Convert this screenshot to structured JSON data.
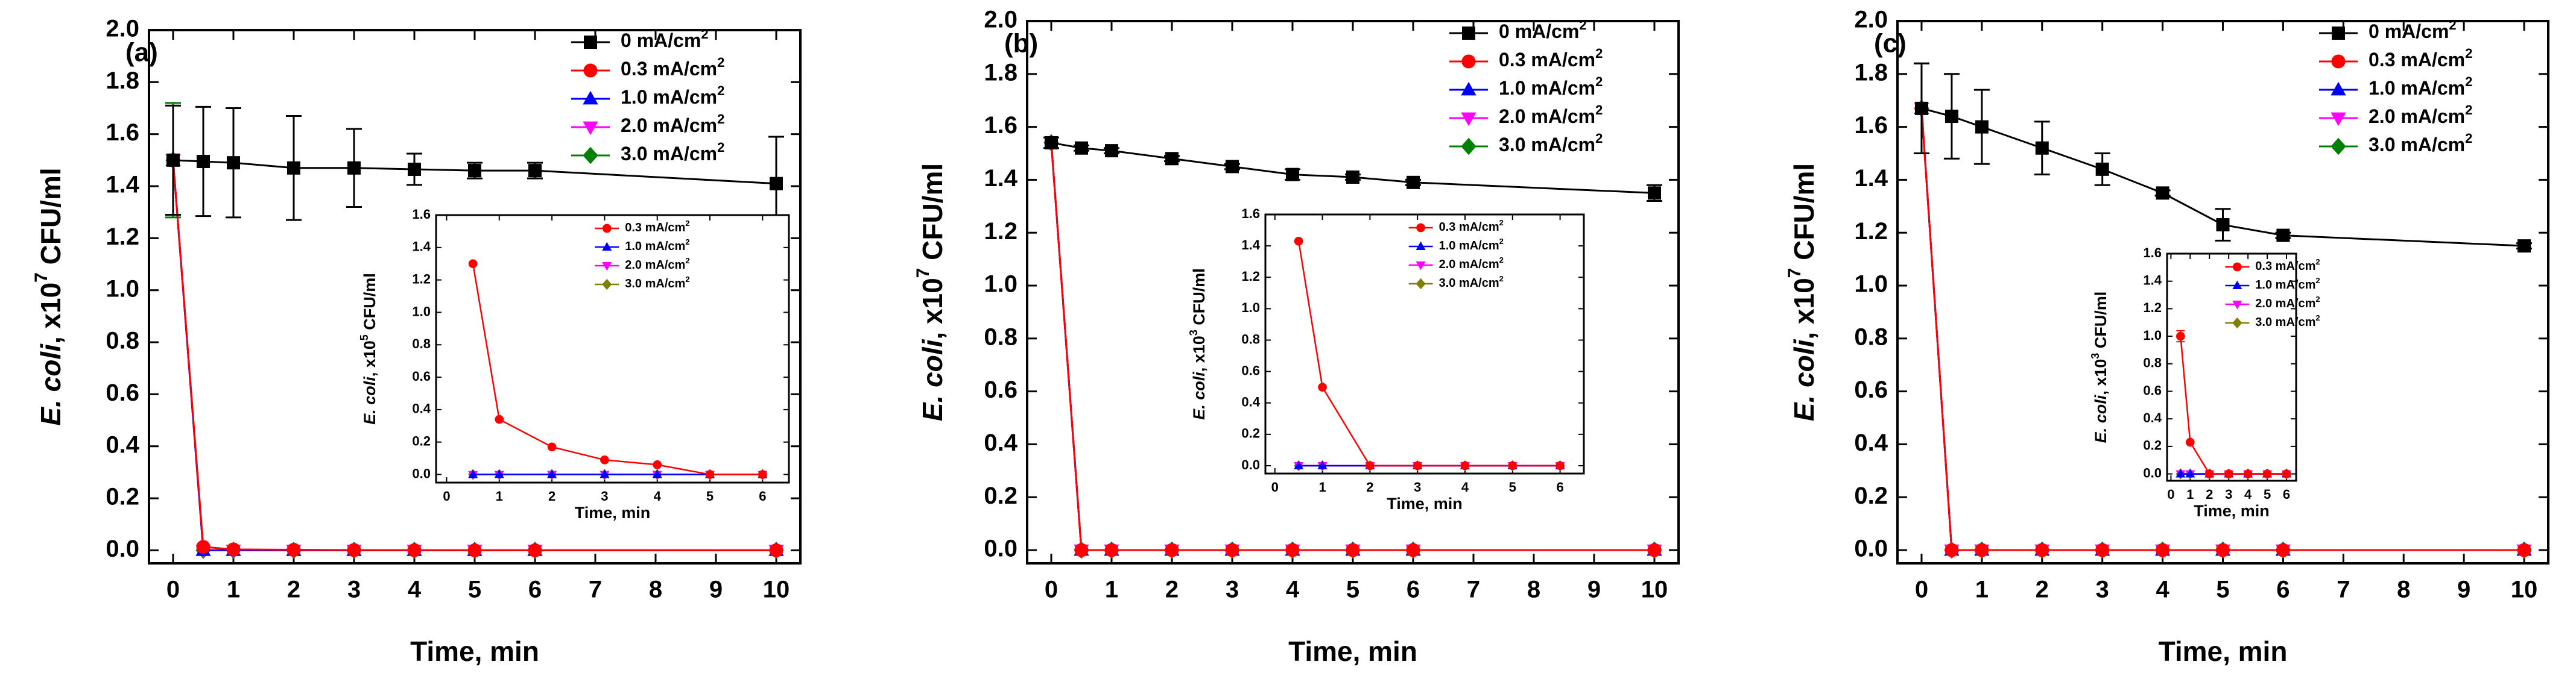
{
  "colors": {
    "s0": "#000000",
    "s03": "#ff0000",
    "s10": "#0000ff",
    "s20": "#ff00ff",
    "s30": "#008000",
    "s30_inset": "#808000",
    "axis": "#000000"
  },
  "markers": {
    "s0": "square",
    "s03": "circle",
    "s10": "triangle-up",
    "s20": "triangle-down",
    "s30": "diamond"
  },
  "chart_data": [
    {
      "type": "line",
      "panel_label": "(a)",
      "xlabel": "Time, min",
      "ylabel_italic": "E. coli",
      "ylabel_rest": ", x10",
      "ylabel_exp": "7",
      "ylabel_unit": " CFU/ml",
      "xlim": [
        -0.4,
        10.4
      ],
      "ylim": [
        -0.05,
        2.0
      ],
      "xticks": [
        0,
        1,
        2,
        3,
        4,
        5,
        6,
        7,
        8,
        9,
        10
      ],
      "xtick_labels": [
        "0",
        "1",
        "2",
        "3",
        "4",
        "5",
        "6",
        "7",
        "8",
        "9",
        "10"
      ],
      "yticks": [
        0.0,
        0.2,
        0.4,
        0.6,
        0.8,
        1.0,
        1.2,
        1.4,
        1.6,
        1.8,
        2.0
      ],
      "ytick_labels": [
        "0.0",
        "0.2",
        "0.4",
        "0.6",
        "0.8",
        "1.0",
        "1.2",
        "1.4",
        "1.6",
        "1.8",
        "2.0"
      ],
      "legend": "top-right",
      "series": [
        {
          "key": "s0",
          "name": "0 mA/cm",
          "sup": "2",
          "x": [
            0,
            0.5,
            1,
            2,
            3,
            4,
            5,
            6,
            10
          ],
          "values": [
            1.5,
            1.495,
            1.49,
            1.47,
            1.47,
            1.465,
            1.46,
            1.46,
            1.41
          ],
          "errors": [
            0.21,
            0.21,
            0.21,
            0.2,
            0.15,
            0.06,
            0.03,
            0.03,
            0.18
          ]
        },
        {
          "key": "s03",
          "name": "0.3 mA/cm",
          "sup": "2",
          "x": [
            0,
            0.5,
            1,
            2,
            3,
            4,
            5,
            6,
            10
          ],
          "values": [
            1.5,
            0.013,
            0.0035,
            0.002,
            0.001,
            0.0006,
            0,
            0,
            0
          ]
        },
        {
          "key": "s10",
          "name": "1.0 mA/cm",
          "sup": "2",
          "x": [
            0,
            0.5,
            1,
            2,
            3,
            4,
            5,
            6,
            10
          ],
          "values": [
            1.5,
            0,
            0,
            0,
            0,
            0,
            0,
            0,
            0
          ]
        },
        {
          "key": "s20",
          "name": "2.0 mA/cm",
          "sup": "2",
          "x": [
            0,
            0.5,
            1,
            2,
            3,
            4,
            5,
            6,
            10
          ],
          "values": [
            1.5,
            0,
            0,
            0,
            0,
            0,
            0,
            0,
            0
          ]
        },
        {
          "key": "s30",
          "name": "3.0 mA/cm",
          "sup": "2",
          "x": [
            0,
            0.5,
            1,
            2,
            3,
            4,
            5,
            6,
            10
          ],
          "values": [
            1.5,
            0,
            0,
            0,
            0,
            0,
            0,
            0,
            0
          ],
          "errors": [
            0.22,
            0,
            0,
            0,
            0,
            0,
            0,
            0,
            0
          ]
        }
      ],
      "inset": {
        "xlabel": "Time, min",
        "ylabel_italic": "E. coli",
        "ylabel_rest": ", x10",
        "ylabel_exp": "5",
        "ylabel_unit": " CFU/ml",
        "xlim": [
          -0.2,
          6.5
        ],
        "ylim": [
          -0.05,
          1.6
        ],
        "xticks": [
          0,
          1,
          2,
          3,
          4,
          5,
          6
        ],
        "xtick_labels": [
          "0",
          "1",
          "2",
          "3",
          "4",
          "5",
          "6"
        ],
        "yticks": [
          0.0,
          0.2,
          0.4,
          0.6,
          0.8,
          1.0,
          1.2,
          1.4,
          1.6
        ],
        "ytick_labels": [
          "0.0",
          "0.2",
          "0.4",
          "0.6",
          "0.8",
          "1.0",
          "1.2",
          "1.4",
          "1.6"
        ],
        "series": [
          {
            "key": "s03",
            "name": "0.3 mA/cm",
            "sup": "2",
            "x": [
              0.5,
              1,
              2,
              3,
              4,
              5,
              6
            ],
            "values": [
              1.3,
              0.34,
              0.17,
              0.09,
              0.06,
              0,
              0
            ]
          },
          {
            "key": "s10",
            "name": "1.0 mA/cm",
            "sup": "2",
            "x": [
              0.5,
              1,
              2,
              3,
              4,
              5,
              6
            ],
            "values": [
              0,
              0,
              0,
              0,
              0,
              0,
              0
            ]
          },
          {
            "key": "s20",
            "name": "2.0 mA/cm",
            "sup": "2",
            "x": [
              0.5,
              1,
              2,
              3,
              4,
              5,
              6
            ],
            "values": [
              0,
              0,
              0,
              0,
              0,
              0,
              0
            ]
          },
          {
            "key": "s30_inset",
            "marker": "diamond",
            "name": "3.0 mA/cm",
            "sup": "2",
            "x": [
              0.5,
              1,
              2,
              3,
              4,
              5,
              6
            ],
            "values": [
              0,
              0,
              0,
              0,
              0,
              0,
              0
            ]
          }
        ]
      }
    },
    {
      "type": "line",
      "panel_label": "(b)",
      "xlabel": "Time, min",
      "ylabel_italic": "E. coli",
      "ylabel_rest": ", x10",
      "ylabel_exp": "7",
      "ylabel_unit": " CFU/ml",
      "xlim": [
        -0.4,
        10.4
      ],
      "ylim": [
        -0.05,
        2.0
      ],
      "xticks": [
        0,
        1,
        2,
        3,
        4,
        5,
        6,
        7,
        8,
        9,
        10
      ],
      "xtick_labels": [
        "0",
        "1",
        "2",
        "3",
        "4",
        "5",
        "6",
        "7",
        "8",
        "9",
        "10"
      ],
      "yticks": [
        0.0,
        0.2,
        0.4,
        0.6,
        0.8,
        1.0,
        1.2,
        1.4,
        1.6,
        1.8,
        2.0
      ],
      "ytick_labels": [
        "0.0",
        "0.2",
        "0.4",
        "0.6",
        "0.8",
        "1.0",
        "1.2",
        "1.4",
        "1.6",
        "1.8",
        "2.0"
      ],
      "legend": "top-right",
      "series": [
        {
          "key": "s0",
          "name": "0 mA/cm",
          "sup": "2",
          "x": [
            0,
            0.5,
            1,
            2,
            3,
            4,
            5,
            6,
            10
          ],
          "values": [
            1.54,
            1.52,
            1.51,
            1.48,
            1.45,
            1.42,
            1.41,
            1.39,
            1.35
          ],
          "errors": [
            0.02,
            0.01,
            0.01,
            0.01,
            0.01,
            0.02,
            0.01,
            0.01,
            0.03
          ]
        },
        {
          "key": "s03",
          "name": "0.3 mA/cm",
          "sup": "2",
          "x": [
            0,
            0.5,
            1,
            2,
            3,
            4,
            5,
            6,
            10
          ],
          "values": [
            1.54,
            0,
            0,
            0,
            0,
            0,
            0,
            0,
            0
          ]
        },
        {
          "key": "s10",
          "name": "1.0 mA/cm",
          "sup": "2",
          "x": [
            0,
            0.5,
            1,
            2,
            3,
            4,
            5,
            6,
            10
          ],
          "values": [
            1.54,
            0,
            0,
            0,
            0,
            0,
            0,
            0,
            0
          ]
        },
        {
          "key": "s20",
          "name": "2.0 mA/cm",
          "sup": "2",
          "x": [
            0,
            0.5,
            1,
            2,
            3,
            4,
            5,
            6,
            10
          ],
          "values": [
            1.54,
            0,
            0,
            0,
            0,
            0,
            0,
            0,
            0
          ]
        },
        {
          "key": "s30",
          "name": "3.0 mA/cm",
          "sup": "2",
          "x": [
            0,
            0.5,
            1,
            2,
            3,
            4,
            5,
            6,
            10
          ],
          "values": [
            1.54,
            0,
            0,
            0,
            0,
            0,
            0,
            0,
            0
          ]
        }
      ],
      "inset": {
        "xlabel": "Time, min",
        "ylabel_italic": "E. coli",
        "ylabel_rest": ", x10",
        "ylabel_exp": "3",
        "ylabel_unit": " CFU/ml",
        "xlim": [
          -0.2,
          6.5
        ],
        "ylim": [
          -0.05,
          1.6
        ],
        "xticks": [
          0,
          1,
          2,
          3,
          4,
          5,
          6
        ],
        "xtick_labels": [
          "0",
          "1",
          "2",
          "3",
          "4",
          "5",
          "6"
        ],
        "yticks": [
          0.0,
          0.2,
          0.4,
          0.6,
          0.8,
          1.0,
          1.2,
          1.4,
          1.6
        ],
        "ytick_labels": [
          "0.0",
          "0.2",
          "0.4",
          "0.6",
          "0.8",
          "1.0",
          "1.2",
          "1.4",
          "1.6"
        ],
        "series": [
          {
            "key": "s03",
            "name": "0.3 mA/cm",
            "sup": "2",
            "x": [
              0.5,
              1,
              2,
              3,
              4,
              5,
              6
            ],
            "values": [
              1.43,
              0.5,
              0,
              0,
              0,
              0,
              0
            ]
          },
          {
            "key": "s10",
            "name": "1.0 mA/cm",
            "sup": "2",
            "x": [
              0.5,
              1,
              2,
              3,
              4,
              5,
              6
            ],
            "values": [
              0,
              0,
              0,
              0,
              0,
              0,
              0
            ]
          },
          {
            "key": "s20",
            "name": "2.0 mA/cm",
            "sup": "2",
            "x": [
              0.5,
              1,
              2,
              3,
              4,
              5,
              6
            ],
            "values": [
              0,
              0,
              0,
              0,
              0,
              0,
              0
            ]
          },
          {
            "key": "s30_inset",
            "marker": "diamond",
            "name": "3.0 mA/cm",
            "sup": "2",
            "x": [
              0.5,
              1,
              2,
              3,
              4,
              5,
              6
            ],
            "values": [
              0,
              0,
              0,
              0,
              0,
              0,
              0
            ]
          }
        ]
      }
    },
    {
      "type": "line",
      "panel_label": "(c)",
      "xlabel": "Time, min",
      "ylabel_italic": "E. coli",
      "ylabel_rest": ", x10",
      "ylabel_exp": "7",
      "ylabel_unit": " CFU/ml",
      "xlim": [
        -0.4,
        10.4
      ],
      "ylim": [
        -0.05,
        2.0
      ],
      "xticks": [
        0,
        1,
        2,
        3,
        4,
        5,
        6,
        7,
        8,
        9,
        10
      ],
      "xtick_labels": [
        "0",
        "1",
        "2",
        "3",
        "4",
        "5",
        "6",
        "7",
        "8",
        "9",
        "10"
      ],
      "yticks": [
        0.0,
        0.2,
        0.4,
        0.6,
        0.8,
        1.0,
        1.2,
        1.4,
        1.6,
        1.8,
        2.0
      ],
      "ytick_labels": [
        "0.0",
        "0.2",
        "0.4",
        "0.6",
        "0.8",
        "1.0",
        "1.2",
        "1.4",
        "1.6",
        "1.8",
        "2.0"
      ],
      "legend": "top-right",
      "series": [
        {
          "key": "s0",
          "name": "0 mA/cm",
          "sup": "2",
          "x": [
            0,
            0.5,
            1,
            2,
            3,
            4,
            5,
            6,
            10
          ],
          "values": [
            1.67,
            1.64,
            1.6,
            1.52,
            1.44,
            1.35,
            1.23,
            1.19,
            1.15
          ],
          "errors": [
            0.17,
            0.16,
            0.14,
            0.1,
            0.06,
            0.01,
            0.06,
            0.01,
            0.01
          ]
        },
        {
          "key": "s03",
          "name": "0.3 mA/cm",
          "sup": "2",
          "x": [
            0,
            0.5,
            1,
            2,
            3,
            4,
            5,
            6,
            10
          ],
          "values": [
            1.67,
            0,
            0,
            0,
            0,
            0,
            0,
            0,
            0
          ]
        },
        {
          "key": "s10",
          "name": "1.0 mA/cm",
          "sup": "2",
          "x": [
            0,
            0.5,
            1,
            2,
            3,
            4,
            5,
            6,
            10
          ],
          "values": [
            1.67,
            0,
            0,
            0,
            0,
            0,
            0,
            0,
            0
          ]
        },
        {
          "key": "s20",
          "name": "2.0 mA/cm",
          "sup": "2",
          "x": [
            0,
            0.5,
            1,
            2,
            3,
            4,
            5,
            6,
            10
          ],
          "values": [
            1.67,
            0,
            0,
            0,
            0,
            0,
            0,
            0,
            0
          ]
        },
        {
          "key": "s30",
          "name": "3.0 mA/cm",
          "sup": "2",
          "x": [
            0,
            0.5,
            1,
            2,
            3,
            4,
            5,
            6,
            10
          ],
          "values": [
            1.67,
            0,
            0,
            0,
            0,
            0,
            0,
            0,
            0
          ],
          "errors": [
            0.17,
            0,
            0,
            0,
            0,
            0,
            0,
            0,
            0
          ]
        }
      ],
      "inset": {
        "xlabel": "Time, min",
        "ylabel_italic": "E. coli",
        "ylabel_rest": ", x10",
        "ylabel_exp": "3",
        "ylabel_unit": " CFU/ml",
        "xlim": [
          -0.2,
          6.5
        ],
        "ylim": [
          -0.05,
          1.6
        ],
        "xticks": [
          0,
          1,
          2,
          3,
          4,
          5,
          6
        ],
        "xtick_labels": [
          "0",
          "1",
          "2",
          "3",
          "4",
          "5",
          "6"
        ],
        "yticks": [
          0.0,
          0.2,
          0.4,
          0.6,
          0.8,
          1.0,
          1.2,
          1.4,
          1.6
        ],
        "ytick_labels": [
          "0.0",
          "0.2",
          "0.4",
          "0.6",
          "0.8",
          "1.0",
          "1.2",
          "1.4",
          "1.6"
        ],
        "series": [
          {
            "key": "s03",
            "name": "0.3 mA/cm",
            "sup": "2",
            "x": [
              0.5,
              1,
              2,
              3,
              4,
              5,
              6
            ],
            "values": [
              1.0,
              0.23,
              0,
              0,
              0,
              0,
              0
            ],
            "errors": [
              0.04,
              0,
              0,
              0,
              0,
              0,
              0
            ]
          },
          {
            "key": "s10",
            "name": "1.0 mA/cm",
            "sup": "2",
            "x": [
              0.5,
              1,
              2,
              3,
              4,
              5,
              6
            ],
            "values": [
              0,
              0,
              0,
              0,
              0,
              0,
              0
            ]
          },
          {
            "key": "s20",
            "name": "2.0 mA/cm",
            "sup": "2",
            "x": [
              0.5,
              1,
              2,
              3,
              4,
              5,
              6
            ],
            "values": [
              0,
              0,
              0,
              0,
              0,
              0,
              0
            ]
          },
          {
            "key": "s30_inset",
            "marker": "diamond",
            "name": "3.0 mA/cm",
            "sup": "2",
            "x": [
              0.5,
              1,
              2,
              3,
              4,
              5,
              6
            ],
            "values": [
              0,
              0,
              0,
              0,
              0,
              0,
              0
            ]
          }
        ]
      }
    }
  ]
}
